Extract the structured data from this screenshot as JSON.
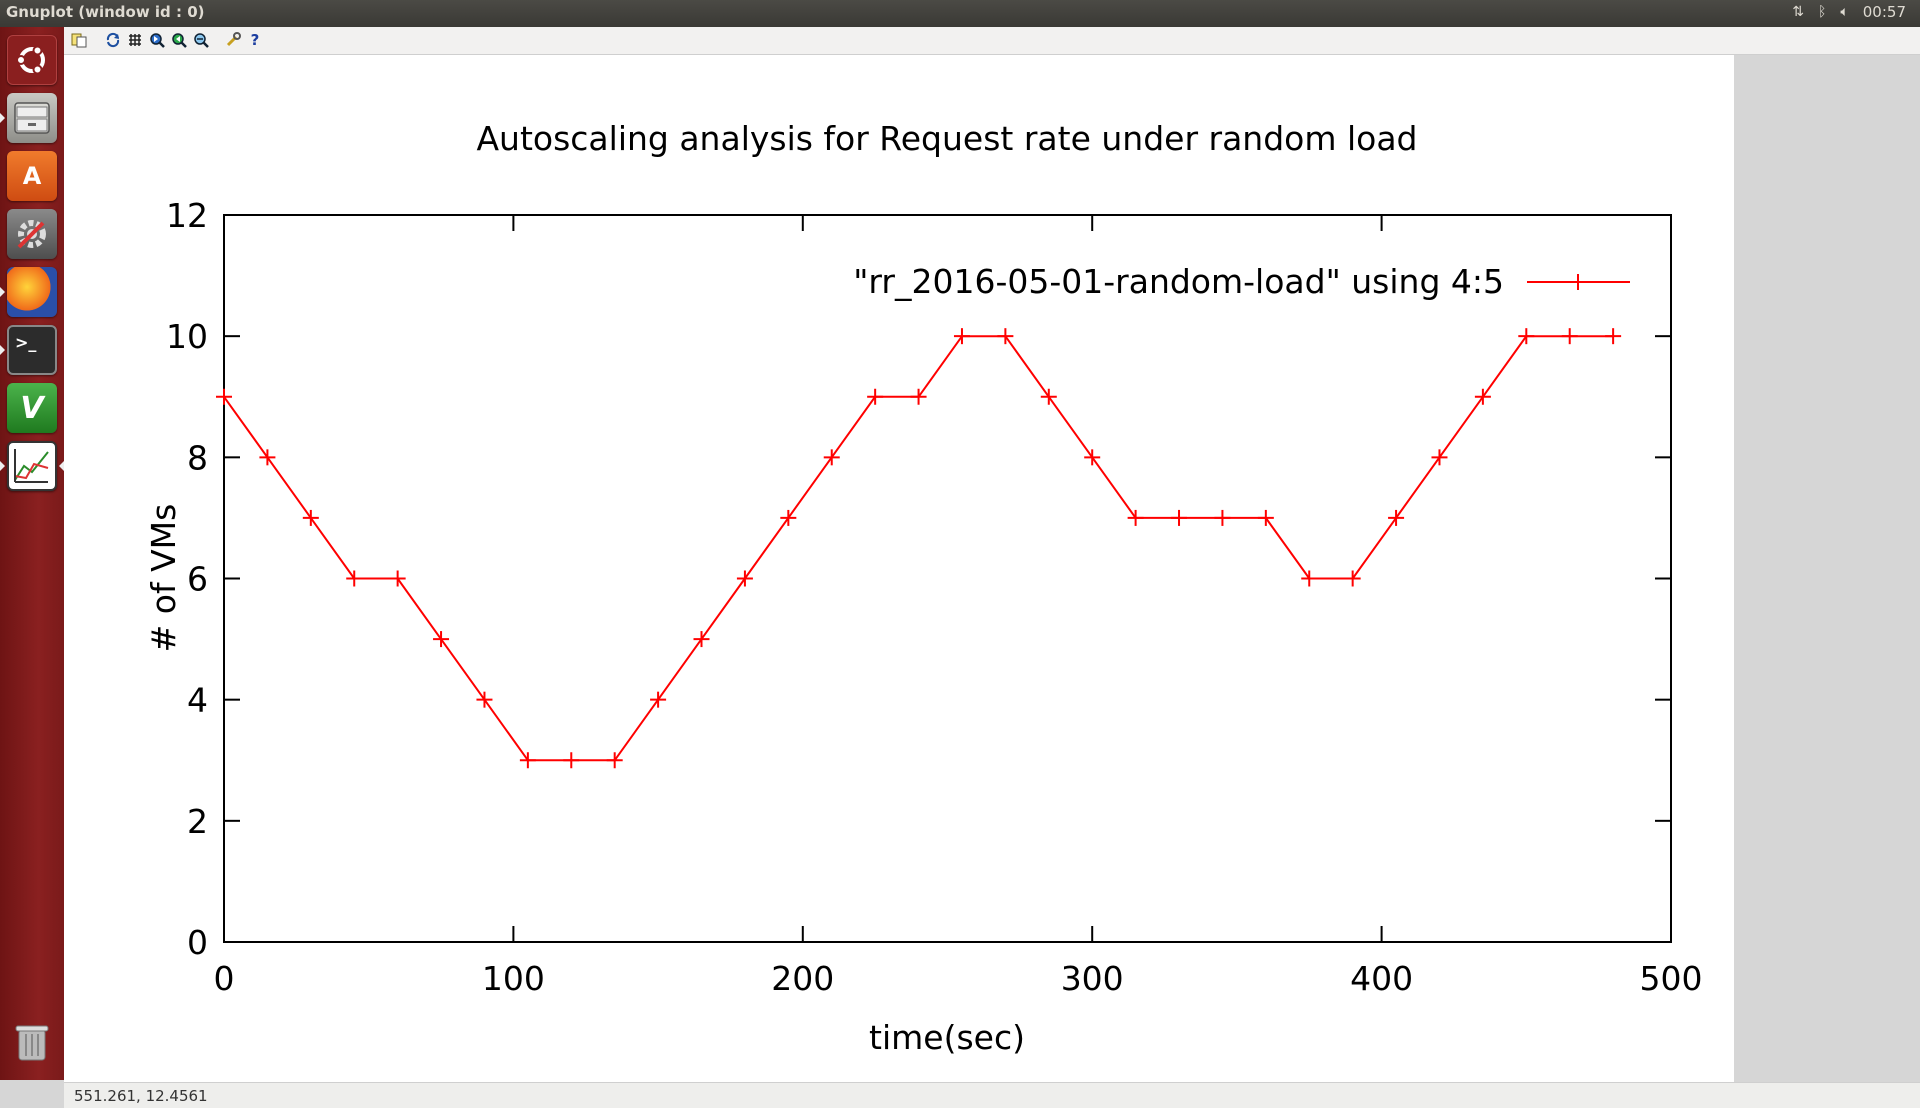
{
  "window": {
    "title": "Gnuplot (window id : 0)"
  },
  "panel": {
    "clock": "00:57",
    "icons": [
      "network-transfer-icon",
      "bluetooth-icon",
      "volume-icon"
    ]
  },
  "launcher": {
    "items": [
      {
        "name": "dash-home-icon",
        "color": "#7a1a1a"
      },
      {
        "name": "files-icon",
        "color": "#8b8b86"
      },
      {
        "name": "software-center-icon",
        "color": "#e0661d"
      },
      {
        "name": "system-settings-icon",
        "color": "#6f6f6f"
      },
      {
        "name": "firefox-icon",
        "color": "#e45a1e"
      },
      {
        "name": "terminal-icon",
        "color": "#2c2c2c"
      },
      {
        "name": "vim-icon",
        "color": "#3c9a3c"
      },
      {
        "name": "gnuplot-icon",
        "color": "#ffffff"
      },
      {
        "name": "trash-icon",
        "color": "#9a9a9a"
      }
    ],
    "terminal_glyph": ">_",
    "vim_glyph": "V",
    "software_glyph": "A"
  },
  "toolbar": {
    "buttons": [
      "copy-to-clipboard-icon",
      "replot-icon",
      "grid-icon",
      "zoom-previous-icon",
      "zoom-next-icon",
      "unzoom-icon",
      "preferences-icon",
      "help-icon"
    ],
    "help_glyph": "?"
  },
  "status": {
    "coordinates": "551.261,  12.4561"
  },
  "chart_data": {
    "type": "line",
    "title": "Autoscaling analysis for Request rate under random load",
    "xlabel": "time(sec)",
    "ylabel": "# of VMs",
    "xlim": [
      0,
      500
    ],
    "ylim": [
      0,
      12
    ],
    "xticks": [
      "0",
      "100",
      "200",
      "300",
      "400",
      "500"
    ],
    "yticks": [
      "0",
      "2",
      "4",
      "6",
      "8",
      "10",
      "12"
    ],
    "grid": false,
    "legend_position": "top-right",
    "color": "#ff0000",
    "series": [
      {
        "name": "\"rr_2016-05-01-random-load\" using 4:5",
        "x": [
          0,
          15,
          30,
          45,
          60,
          75,
          90,
          105,
          120,
          135,
          150,
          165,
          180,
          195,
          210,
          225,
          240,
          255,
          270,
          285,
          300,
          315,
          330,
          345,
          360,
          375,
          390,
          405,
          420,
          435,
          450,
          465,
          480
        ],
        "y": [
          9,
          8,
          7,
          6,
          6,
          5,
          4,
          3,
          3,
          3,
          4,
          5,
          6,
          7,
          8,
          9,
          9,
          10,
          10,
          9,
          8,
          7,
          7,
          7,
          7,
          6,
          6,
          7,
          8,
          9,
          10,
          10,
          10
        ]
      }
    ]
  }
}
